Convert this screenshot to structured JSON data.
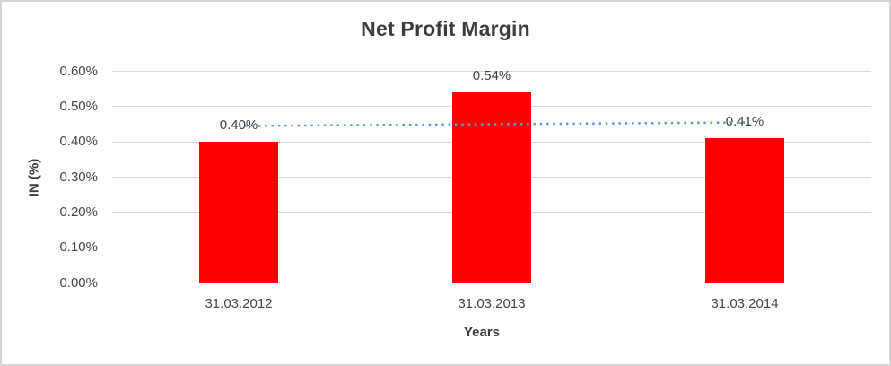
{
  "chart_data": {
    "type": "bar",
    "title": "Net Profit Margin",
    "xlabel": "Years",
    "ylabel": "IN (%)",
    "categories": [
      "31.03.2012",
      "31.03.2013",
      "31.03.2014"
    ],
    "values": [
      0.4,
      0.54,
      0.41
    ],
    "data_labels": [
      "0.40%",
      "0.54%",
      "0.41%"
    ],
    "ytick_labels": [
      "0.00%",
      "0.10%",
      "0.20%",
      "0.30%",
      "0.40%",
      "0.50%",
      "0.60%"
    ],
    "ylim": [
      0,
      0.6
    ],
    "ytick_step": 0.1,
    "grid": true,
    "legend": "none",
    "bar_color": "#fe0000",
    "trendline": {
      "type": "linear",
      "style": "dotted",
      "color": "#5b9bd5"
    },
    "colors": {
      "gridline": "#d9d9d9",
      "axis_line": "#c0c0c0",
      "tick_text": "#474747",
      "title_text": "#3d3d3d",
      "label_text": "#404040"
    }
  }
}
